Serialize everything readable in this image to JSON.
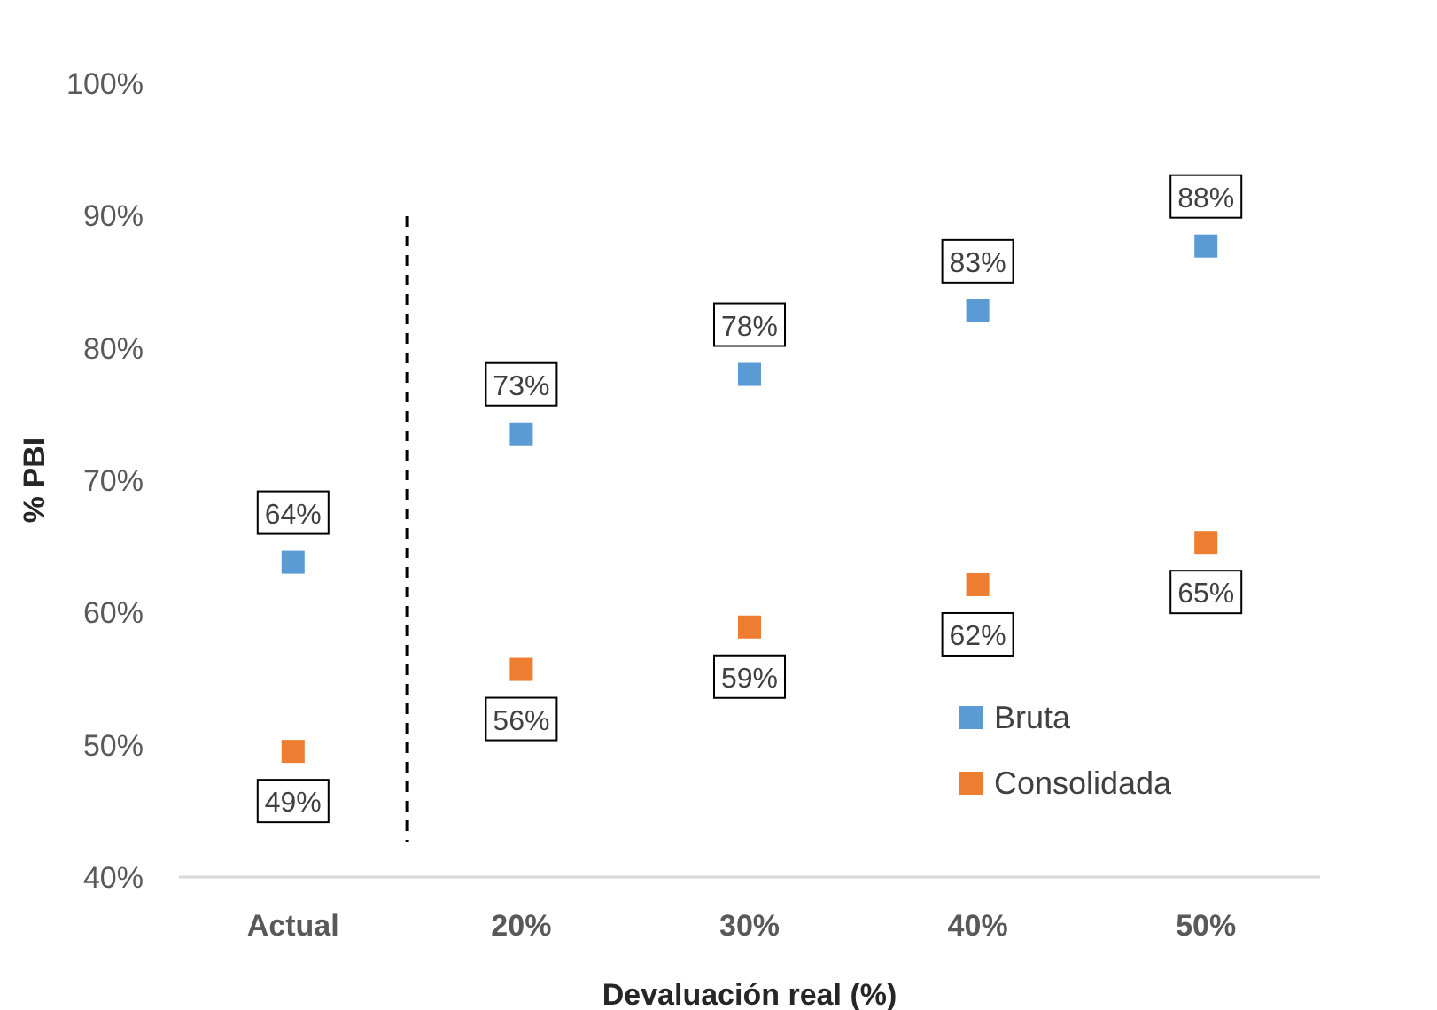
{
  "chart_data": {
    "type": "scatter",
    "xlabel": "Devaluación real (%)",
    "ylabel": "% PBI",
    "categories": [
      "Actual",
      "20%",
      "30%",
      "40%",
      "50%"
    ],
    "series": [
      {
        "name": "Bruta",
        "color": "#5b9bd5",
        "values": [
          63.8,
          73.5,
          78.0,
          82.8,
          87.7
        ],
        "value_labels": [
          "64%",
          "73%",
          "78%",
          "83%",
          "88%"
        ]
      },
      {
        "name": "Consolidada",
        "color": "#ed7d31",
        "values": [
          49.5,
          55.7,
          58.9,
          62.1,
          65.3
        ],
        "value_labels": [
          "49%",
          "56%",
          "59%",
          "62%",
          "65%"
        ]
      }
    ],
    "ylim": [
      40,
      100
    ],
    "yticks": [
      {
        "value": 40,
        "label": "40%"
      },
      {
        "value": 50,
        "label": "50%"
      },
      {
        "value": 60,
        "label": "60%"
      },
      {
        "value": 70,
        "label": "70%"
      },
      {
        "value": 80,
        "label": "80%"
      },
      {
        "value": 90,
        "label": "90%"
      },
      {
        "value": 100,
        "label": "100%"
      }
    ],
    "marker": "square",
    "legend": "bottom right",
    "grid": false
  }
}
